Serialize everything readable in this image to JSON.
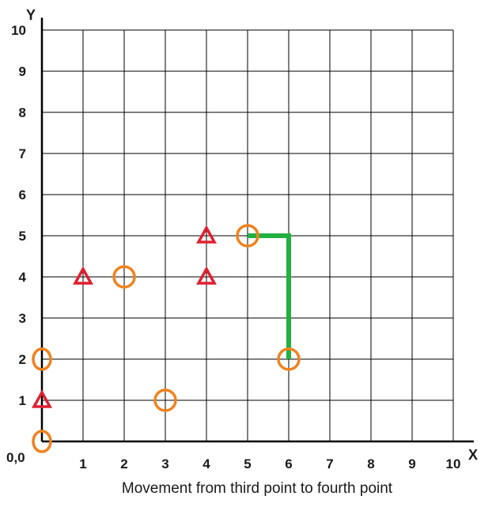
{
  "axes": {
    "x_label": "X",
    "y_label": "Y",
    "origin_label": "0,0",
    "x_ticks": [
      "1",
      "2",
      "3",
      "4",
      "5",
      "6",
      "7",
      "8",
      "9",
      "10"
    ],
    "y_ticks": [
      "1",
      "2",
      "3",
      "4",
      "5",
      "6",
      "7",
      "8",
      "9",
      "10"
    ],
    "range": [
      0,
      10
    ]
  },
  "caption": "Movement from third point to fourth point",
  "colors": {
    "grid": "#000000",
    "circle": "#f0821e",
    "triangle": "#e02030",
    "path": "#22b040"
  },
  "circles": [
    {
      "x": 0,
      "y": 0
    },
    {
      "x": 0,
      "y": 2
    },
    {
      "x": 2,
      "y": 4
    },
    {
      "x": 3,
      "y": 1
    },
    {
      "x": 5,
      "y": 5
    },
    {
      "x": 6,
      "y": 2
    }
  ],
  "triangles": [
    {
      "x": 0,
      "y": 1
    },
    {
      "x": 1,
      "y": 4
    },
    {
      "x": 4,
      "y": 4
    },
    {
      "x": 4,
      "y": 5
    }
  ],
  "path": [
    {
      "x": 6,
      "y": 2
    },
    {
      "x": 6,
      "y": 5
    },
    {
      "x": 5,
      "y": 5
    }
  ]
}
